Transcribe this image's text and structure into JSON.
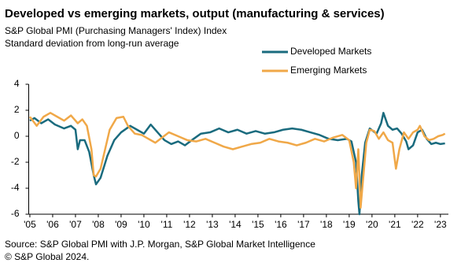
{
  "chart_data": {
    "type": "line",
    "title": "Developed vs emerging markets, output (manufacturing & services)",
    "subtitle": [
      "S&P Global PMI (Purchasing Managers' Index) Index",
      "Standard deviation  from long-run average"
    ],
    "source": "Source: S&P Global PMI with J.P. Morgan, S&P Global Market Intelligence",
    "copyright": "© S&P Global 2024.",
    "xlim": [
      2004.95,
      2023.35
    ],
    "xticks": [
      {
        "value": 2005,
        "label": "'05"
      },
      {
        "value": 2006,
        "label": "'06"
      },
      {
        "value": 2007,
        "label": "'07"
      },
      {
        "value": 2008,
        "label": "'08"
      },
      {
        "value": 2009,
        "label": "'09"
      },
      {
        "value": 2010,
        "label": "'10"
      },
      {
        "value": 2011,
        "label": "'11"
      },
      {
        "value": 2012,
        "label": "'12"
      },
      {
        "value": 2013,
        "label": "'13"
      },
      {
        "value": 2014,
        "label": "'14"
      },
      {
        "value": 2015,
        "label": "'15"
      },
      {
        "value": 2016,
        "label": "'16"
      },
      {
        "value": 2017,
        "label": "'17"
      },
      {
        "value": 2018,
        "label": "'18"
      },
      {
        "value": 2019,
        "label": "'19"
      },
      {
        "value": 2020,
        "label": "'20"
      },
      {
        "value": 2021,
        "label": "'21"
      },
      {
        "value": 2022,
        "label": "'22"
      },
      {
        "value": 2023,
        "label": "'23"
      }
    ],
    "ylim": [
      -6,
      4
    ],
    "yticks": [
      4,
      2,
      0,
      -2,
      -4,
      -6
    ],
    "series": [
      {
        "name": "Developed Markets",
        "color": "#1a6b7e",
        "x": [
          2005.0,
          2005.2,
          2005.5,
          2005.8,
          2006.1,
          2006.5,
          2006.8,
          2007.0,
          2007.1,
          2007.2,
          2007.4,
          2007.6,
          2007.8,
          2007.9,
          2008.1,
          2008.4,
          2008.7,
          2009.0,
          2009.4,
          2009.7,
          2010.0,
          2010.3,
          2010.6,
          2010.9,
          2011.2,
          2011.5,
          2011.8,
          2012.1,
          2012.5,
          2012.9,
          2013.3,
          2013.7,
          2014.1,
          2014.5,
          2014.9,
          2015.3,
          2015.7,
          2016.1,
          2016.5,
          2016.9,
          2017.3,
          2017.7,
          2018.1,
          2018.5,
          2018.9,
          2019.1,
          2019.3,
          2019.4,
          2019.45,
          2019.55,
          2019.7,
          2019.9,
          2020.2,
          2020.4,
          2020.5,
          2020.7,
          2020.9,
          2021.1,
          2021.3,
          2021.5,
          2021.6,
          2021.8,
          2022.0,
          2022.2,
          2022.4,
          2022.6,
          2022.8,
          2023.0,
          2023.2
        ],
        "values": [
          1.2,
          1.4,
          1.0,
          1.3,
          0.9,
          0.6,
          0.8,
          0.5,
          -1.0,
          -0.3,
          -0.3,
          -1.2,
          -3.0,
          -3.7,
          -3.2,
          -1.5,
          -0.3,
          0.3,
          0.8,
          0.5,
          0.2,
          0.9,
          0.3,
          -0.3,
          -0.6,
          -0.4,
          -0.7,
          -0.3,
          0.2,
          0.3,
          0.6,
          0.3,
          0.5,
          0.2,
          0.4,
          0.2,
          0.3,
          0.5,
          0.6,
          0.5,
          0.3,
          0.1,
          -0.2,
          -0.3,
          -0.2,
          -0.4,
          -2.0,
          -5.0,
          -6.0,
          -3.0,
          -0.5,
          0.6,
          0.2,
          1.0,
          1.8,
          0.8,
          0.5,
          0.6,
          0.2,
          -0.4,
          -1.0,
          -0.7,
          0.3,
          0.5,
          -0.2,
          -0.6,
          -0.5,
          -0.6,
          -0.55
        ]
      },
      {
        "name": "Emerging Markets",
        "color": "#f0a848",
        "x": [
          2005.0,
          2005.3,
          2005.6,
          2005.9,
          2006.2,
          2006.5,
          2006.8,
          2007.1,
          2007.3,
          2007.5,
          2007.7,
          2007.8,
          2007.9,
          2008.1,
          2008.3,
          2008.5,
          2008.8,
          2009.1,
          2009.3,
          2009.6,
          2009.9,
          2010.2,
          2010.5,
          2010.8,
          2011.1,
          2011.5,
          2011.9,
          2012.3,
          2012.7,
          2013.1,
          2013.5,
          2013.9,
          2014.3,
          2014.7,
          2015.1,
          2015.5,
          2015.9,
          2016.3,
          2016.7,
          2017.1,
          2017.5,
          2017.9,
          2018.3,
          2018.7,
          2019.0,
          2019.2,
          2019.3,
          2019.4,
          2019.5,
          2019.6,
          2019.75,
          2019.9,
          2020.1,
          2020.3,
          2020.5,
          2020.7,
          2020.9,
          2021.05,
          2021.2,
          2021.4,
          2021.6,
          2021.8,
          2022.0,
          2022.1,
          2022.3,
          2022.5,
          2022.7,
          2022.9,
          2023.1,
          2023.2
        ],
        "values": [
          1.5,
          0.8,
          1.5,
          1.8,
          1.5,
          1.2,
          1.6,
          1.0,
          1.3,
          0.8,
          -1.0,
          -3.0,
          -3.1,
          -2.5,
          -1.0,
          0.5,
          1.4,
          1.5,
          0.8,
          0.2,
          0.1,
          -0.2,
          -0.5,
          -0.1,
          0.3,
          0.0,
          -0.3,
          -0.4,
          -0.2,
          -0.5,
          -0.8,
          -1.0,
          -0.8,
          -0.6,
          -0.5,
          -0.2,
          -0.4,
          -0.5,
          -0.7,
          -0.5,
          -0.2,
          -0.4,
          -0.1,
          0.1,
          -0.3,
          -2.0,
          -4.0,
          -1.0,
          -5.5,
          -3.5,
          -0.5,
          0.5,
          0.4,
          -0.2,
          0.3,
          -0.3,
          -0.5,
          -2.5,
          -1.0,
          0.3,
          -0.2,
          0.3,
          0.5,
          0.8,
          0.0,
          -0.3,
          -0.2,
          0.0,
          0.1,
          0.2
        ]
      }
    ]
  }
}
